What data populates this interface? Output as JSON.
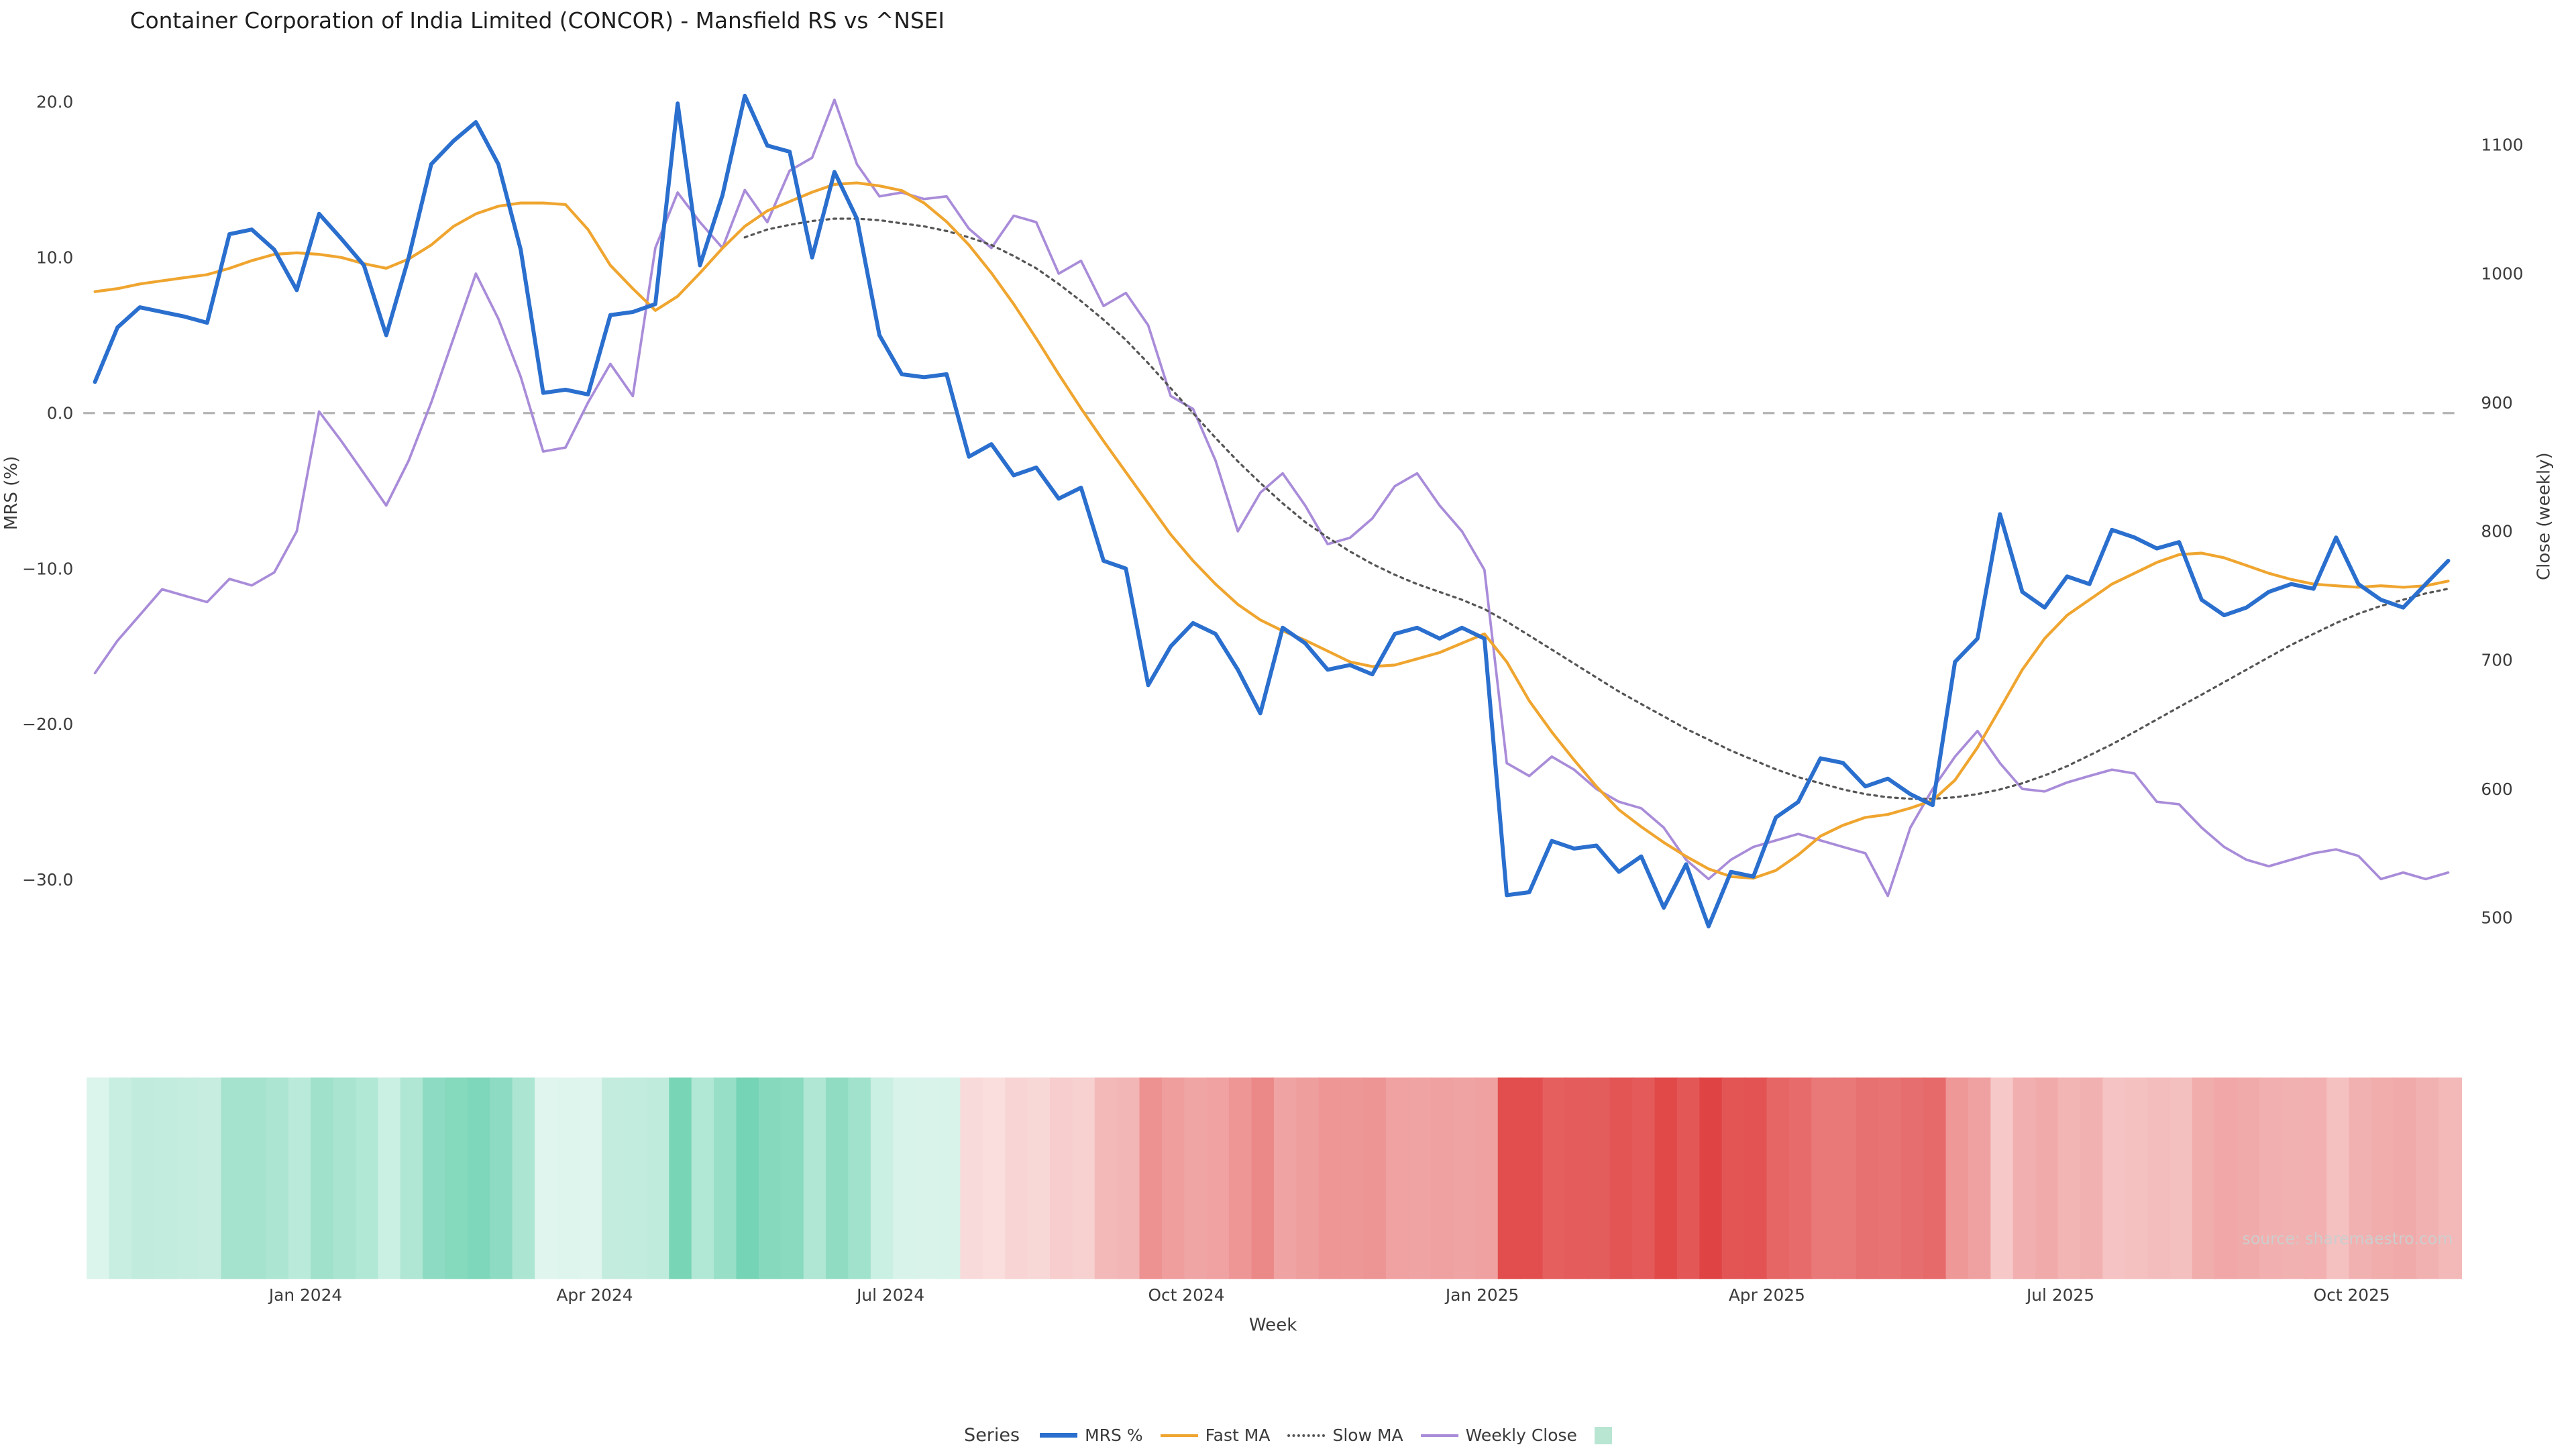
{
  "legend": {
    "title": "Series",
    "items": [
      {
        "id": "mrs",
        "label": "MRS %",
        "swatch": "line-solid",
        "color": "#2a6fce",
        "thick": true
      },
      {
        "id": "fast_ma",
        "label": "Fast MA",
        "swatch": "line-solid",
        "color": "#efa52f",
        "thick": false
      },
      {
        "id": "slow_ma",
        "label": "Slow MA",
        "swatch": "line-dotted",
        "color": "#555555",
        "thick": false
      },
      {
        "id": "weekly_close",
        "label": "Weekly Close",
        "swatch": "line-solid",
        "color": "#a98cd9",
        "thick": false
      },
      {
        "id": "heatmap",
        "label": "",
        "swatch": "square",
        "color": "#b9e6d2",
        "thick": false
      }
    ]
  },
  "chart_data": {
    "type": "line",
    "title": "Container Corporation of India Limited (CONCOR) - Mansfield RS vs ^NSEI",
    "xlabel": "Week",
    "ylabel_left": "MRS (%)",
    "ylabel_right": "Close (weekly)",
    "source": "source: sharemaestro.com",
    "grid": false,
    "zero_line_value": 0,
    "ylim_left": [
      -33.5,
      21.7
    ],
    "ylim_right": [
      488,
      1154
    ],
    "x_axis": {
      "ticks": [
        {
          "index": 9.4,
          "label": "Jan 2024"
        },
        {
          "index": 22.3,
          "label": "Apr 2024"
        },
        {
          "index": 35.5,
          "label": "Jul 2024"
        },
        {
          "index": 48.7,
          "label": "Oct 2024"
        },
        {
          "index": 61.9,
          "label": "Jan 2025"
        },
        {
          "index": 74.6,
          "label": "Apr 2025"
        },
        {
          "index": 87.7,
          "label": "Jul 2025"
        },
        {
          "index": 100.7,
          "label": "Oct 2025"
        }
      ]
    },
    "y_axis_left": {
      "ticks": [
        {
          "value": 20,
          "label": "20.0"
        },
        {
          "value": 10,
          "label": "10.0"
        },
        {
          "value": 0,
          "label": "0.0"
        },
        {
          "value": -10,
          "label": "−10.0"
        },
        {
          "value": -20,
          "label": "−20.0"
        },
        {
          "value": -30,
          "label": "−30.0"
        }
      ]
    },
    "y_axis_right": {
      "ticks": [
        {
          "value": 1100,
          "label": "1100"
        },
        {
          "value": 1000,
          "label": "1000"
        },
        {
          "value": 900,
          "label": "900"
        },
        {
          "value": 800,
          "label": "800"
        },
        {
          "value": 700,
          "label": "700"
        },
        {
          "value": 600,
          "label": "600"
        },
        {
          "value": 500,
          "label": "500"
        }
      ]
    },
    "heatmap": {
      "basis": "MRS %",
      "positive_color": "#2fbe8f",
      "negative_color": "#e04343",
      "max_abs_value": 33
    },
    "series": [
      {
        "id": "mrs",
        "name": "MRS %",
        "axis": "left",
        "color": "#2a6fce",
        "style": "solid",
        "width": 2.4,
        "z": 4,
        "values": [
          2.0,
          5.5,
          6.8,
          6.5,
          6.2,
          5.8,
          11.5,
          11.8,
          10.5,
          7.9,
          12.8,
          11.2,
          9.5,
          5.0,
          10.0,
          16.0,
          17.5,
          18.7,
          16.0,
          10.5,
          1.3,
          1.5,
          1.2,
          6.3,
          6.5,
          7.0,
          19.9,
          9.5,
          14.0,
          20.4,
          17.2,
          16.8,
          10.0,
          15.5,
          12.5,
          5.0,
          2.5,
          2.3,
          2.5,
          -2.8,
          -2.0,
          -4.0,
          -3.5,
          -5.5,
          -4.8,
          -9.5,
          -10.0,
          -17.5,
          -15.0,
          -13.5,
          -14.2,
          -16.5,
          -19.3,
          -13.8,
          -14.8,
          -16.5,
          -16.2,
          -16.8,
          -14.2,
          -13.8,
          -14.5,
          -13.8,
          -14.5,
          -31.0,
          -30.8,
          -27.5,
          -28.0,
          -27.8,
          -29.5,
          -28.5,
          -31.8,
          -29.0,
          -33.0,
          -29.5,
          -29.8,
          -26.0,
          -25.0,
          -22.2,
          -22.5,
          -24.0,
          -23.5,
          -24.5,
          -25.2,
          -16.0,
          -14.5,
          -6.5,
          -11.5,
          -12.5,
          -10.5,
          -11.0,
          -7.5,
          -8.0,
          -8.7,
          -8.3,
          -12.0,
          -13.0,
          -12.5,
          -11.5,
          -11.0,
          -11.3,
          -8.0,
          -11.0,
          -12.0,
          -12.5,
          -11.0,
          -9.5
        ]
      },
      {
        "id": "fast_ma",
        "name": "Fast MA",
        "axis": "left",
        "color": "#efa52f",
        "style": "solid",
        "width": 1.7,
        "z": 3,
        "values": [
          7.8,
          8.0,
          8.3,
          8.5,
          8.7,
          8.9,
          9.3,
          9.8,
          10.2,
          10.3,
          10.2,
          10.0,
          9.6,
          9.3,
          9.9,
          10.8,
          12.0,
          12.8,
          13.3,
          13.5,
          13.5,
          13.4,
          11.8,
          9.5,
          8.0,
          6.6,
          7.5,
          9.0,
          10.6,
          12.0,
          13.0,
          13.6,
          14.2,
          14.7,
          14.8,
          14.6,
          14.3,
          13.5,
          12.3,
          10.8,
          9.0,
          7.0,
          4.8,
          2.5,
          0.3,
          -1.8,
          -3.8,
          -5.8,
          -7.8,
          -9.5,
          -11.0,
          -12.3,
          -13.3,
          -14.0,
          -14.6,
          -15.3,
          -16.0,
          -16.3,
          -16.2,
          -15.8,
          -15.4,
          -14.8,
          -14.2,
          -16.0,
          -18.5,
          -20.5,
          -22.3,
          -24.0,
          -25.5,
          -26.6,
          -27.6,
          -28.5,
          -29.3,
          -29.8,
          -29.9,
          -29.4,
          -28.4,
          -27.2,
          -26.5,
          -26.0,
          -25.8,
          -25.4,
          -24.9,
          -23.6,
          -21.5,
          -19.0,
          -16.5,
          -14.5,
          -13.0,
          -12.0,
          -11.0,
          -10.3,
          -9.6,
          -9.1,
          -9.0,
          -9.3,
          -9.8,
          -10.3,
          -10.7,
          -11.0,
          -11.1,
          -11.2,
          -11.1,
          -11.2,
          -11.1,
          -10.8
        ]
      },
      {
        "id": "slow_ma",
        "name": "Slow MA",
        "axis": "left",
        "color": "#555555",
        "style": "dotted",
        "width": 1.3,
        "z": 2,
        "values": [
          null,
          null,
          null,
          null,
          null,
          null,
          null,
          null,
          null,
          null,
          null,
          null,
          null,
          null,
          null,
          null,
          null,
          null,
          null,
          null,
          null,
          null,
          null,
          null,
          null,
          null,
          null,
          null,
          null,
          11.3,
          11.8,
          12.1,
          12.35,
          12.5,
          12.5,
          12.4,
          12.2,
          12.0,
          11.7,
          11.3,
          10.8,
          10.1,
          9.3,
          8.3,
          7.2,
          6.0,
          4.7,
          3.2,
          1.6,
          0.0,
          -1.6,
          -3.1,
          -4.5,
          -5.8,
          -7.0,
          -8.0,
          -8.9,
          -9.7,
          -10.4,
          -11.0,
          -11.5,
          -12.0,
          -12.6,
          -13.4,
          -14.3,
          -15.2,
          -16.1,
          -17.0,
          -17.9,
          -18.7,
          -19.5,
          -20.3,
          -21.0,
          -21.7,
          -22.3,
          -22.9,
          -23.4,
          -23.8,
          -24.2,
          -24.5,
          -24.7,
          -24.8,
          -24.8,
          -24.7,
          -24.5,
          -24.2,
          -23.8,
          -23.3,
          -22.7,
          -22.0,
          -21.3,
          -20.5,
          -19.7,
          -18.9,
          -18.1,
          -17.3,
          -16.5,
          -15.7,
          -14.9,
          -14.2,
          -13.5,
          -12.9,
          -12.4,
          -12.0,
          -11.6,
          -11.3
        ]
      },
      {
        "id": "weekly_close",
        "name": "Weekly Close",
        "axis": "right",
        "color": "#a98cd9",
        "style": "solid",
        "width": 1.5,
        "z": 1,
        "values": [
          690,
          715,
          735,
          755,
          750,
          745,
          763,
          758,
          768,
          800,
          893,
          870,
          845,
          820,
          855,
          900,
          950,
          1000,
          965,
          920,
          862,
          865,
          900,
          930,
          905,
          1020,
          1063,
          1040,
          1020,
          1065,
          1040,
          1080,
          1090,
          1135,
          1085,
          1060,
          1063,
          1058,
          1060,
          1035,
          1020,
          1045,
          1040,
          1000,
          1010,
          975,
          985,
          960,
          905,
          895,
          855,
          800,
          830,
          845,
          820,
          790,
          795,
          810,
          835,
          845,
          820,
          800,
          770,
          620,
          610,
          625,
          615,
          600,
          590,
          585,
          570,
          545,
          530,
          545,
          555,
          560,
          565,
          560,
          555,
          550,
          517,
          570,
          600,
          625,
          645,
          620,
          600,
          598,
          605,
          610,
          615,
          612,
          590,
          588,
          570,
          555,
          545,
          540,
          545,
          550,
          553,
          548,
          530,
          535,
          530,
          535
        ]
      }
    ]
  }
}
